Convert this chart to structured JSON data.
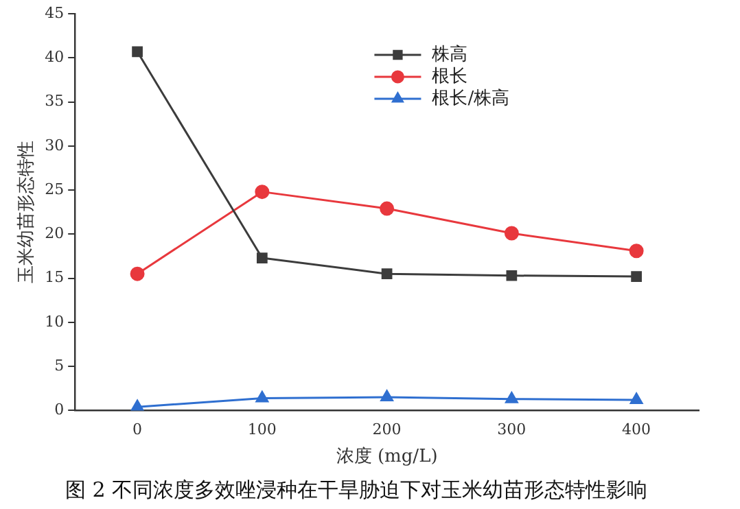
{
  "chart_data": {
    "type": "line",
    "title": "图 2 不同浓度多效唑浸种在干旱胁迫下对玉米幼苗形态特性影响",
    "xlabel": "浓度 (mg/L)",
    "ylabel": "玉米幼苗形态特性",
    "x": [
      0,
      100,
      200,
      300,
      400
    ],
    "series": [
      {
        "name": "株高",
        "color": "#3c3c3c",
        "marker": "square",
        "values": [
          40.7,
          17.3,
          15.5,
          15.3,
          15.2
        ]
      },
      {
        "name": "根长",
        "color": "#e8383d",
        "marker": "circle",
        "values": [
          15.5,
          24.8,
          22.9,
          20.1,
          18.1
        ]
      },
      {
        "name": "根长/株高",
        "color": "#2f6fd0",
        "marker": "triangle",
        "values": [
          0.4,
          1.4,
          1.5,
          1.3,
          1.2
        ]
      }
    ],
    "xlim": [
      -50,
      450
    ],
    "xticks": [
      0,
      100,
      200,
      300,
      400
    ],
    "ylim": [
      0,
      45
    ],
    "yticks": [
      0,
      5,
      10,
      15,
      20,
      25,
      30,
      35,
      40,
      45
    ],
    "grid": false,
    "legend": "top right",
    "line_style": "solid"
  }
}
